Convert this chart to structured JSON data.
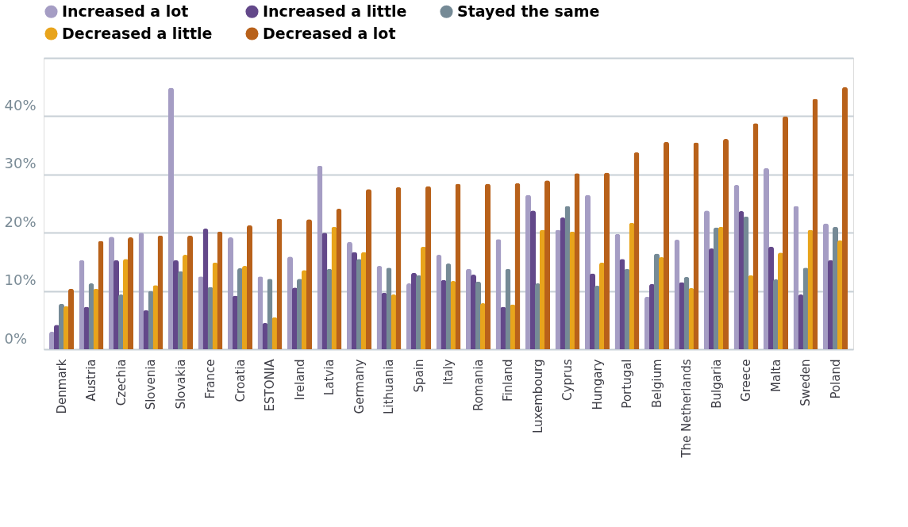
{
  "chart_data": {
    "type": "bar",
    "legend": "top left",
    "grid": "y",
    "categories": [
      "Denmark",
      "Austria",
      "Czechia",
      "Slovenia",
      "Slovakia",
      "France",
      "Croatia",
      "ESTONIA",
      "Ireland",
      "Latvia",
      "Germany",
      "Lithuania",
      "Spain",
      "Italy",
      "Romania",
      "Finland",
      "Luxembourg",
      "Cyprus",
      "Hungary",
      "Portugal",
      "Belgium",
      "The Netherlands",
      "Bulgaria",
      "Greece",
      "Malta",
      "Sweden",
      "Poland"
    ],
    "ylim": [
      0,
      50
    ],
    "yticks": [
      {
        "value": 0,
        "label": "0%"
      },
      {
        "value": 10,
        "label": "10%"
      },
      {
        "value": 20,
        "label": "20%"
      },
      {
        "value": 30,
        "label": "30%"
      },
      {
        "value": 40,
        "label": "40%"
      },
      {
        "value": 50,
        "label": null
      }
    ],
    "series": [
      {
        "name": "Increased a lot",
        "color": "#a59dc4",
        "values": [
          3.0,
          15.3,
          19.3,
          20.0,
          44.9,
          12.5,
          19.2,
          12.5,
          15.9,
          31.5,
          18.4,
          14.3,
          11.3,
          16.2,
          13.8,
          18.9,
          26.5,
          20.5,
          26.5,
          19.8,
          9.0,
          18.8,
          23.8,
          28.2,
          31.1,
          24.6,
          21.6
        ]
      },
      {
        "name": "Increased a little",
        "color": "#63488a",
        "values": [
          4.2,
          7.3,
          15.3,
          6.7,
          15.3,
          20.7,
          9.2,
          4.5,
          10.6,
          20.0,
          16.7,
          9.7,
          13.1,
          11.9,
          12.8,
          7.3,
          23.8,
          22.6,
          13.0,
          15.5,
          11.2,
          11.5,
          17.3,
          23.7,
          17.6,
          9.4,
          15.3
        ]
      },
      {
        "name": "Stayed the same",
        "color": "#758a96",
        "values": [
          7.8,
          11.3,
          9.4,
          10.0,
          13.4,
          10.7,
          13.9,
          12.1,
          12.1,
          13.8,
          15.5,
          14.0,
          12.7,
          14.7,
          11.6,
          13.8,
          11.3,
          24.6,
          10.9,
          13.8,
          16.4,
          12.4,
          20.9,
          22.8,
          12.0,
          14.0,
          21.0
        ]
      },
      {
        "name": "Decreased a little",
        "color": "#e8a41c",
        "values": [
          7.4,
          10.4,
          15.5,
          11.0,
          16.2,
          14.9,
          14.3,
          5.5,
          13.6,
          21.0,
          16.7,
          9.4,
          17.6,
          11.7,
          7.9,
          7.7,
          20.5,
          20.2,
          14.9,
          21.7,
          15.8,
          10.5,
          21.0,
          12.7,
          16.6,
          20.5,
          18.7
        ]
      },
      {
        "name": "Decreased a lot",
        "color": "#b8611a",
        "values": [
          10.4,
          18.6,
          19.2,
          19.5,
          19.5,
          20.2,
          21.3,
          22.4,
          22.3,
          24.1,
          27.5,
          27.8,
          28.0,
          28.4,
          28.4,
          28.5,
          29.0,
          30.2,
          30.3,
          33.8,
          35.6,
          35.5,
          36.1,
          38.8,
          40.0,
          43.0,
          45.0
        ]
      }
    ]
  }
}
